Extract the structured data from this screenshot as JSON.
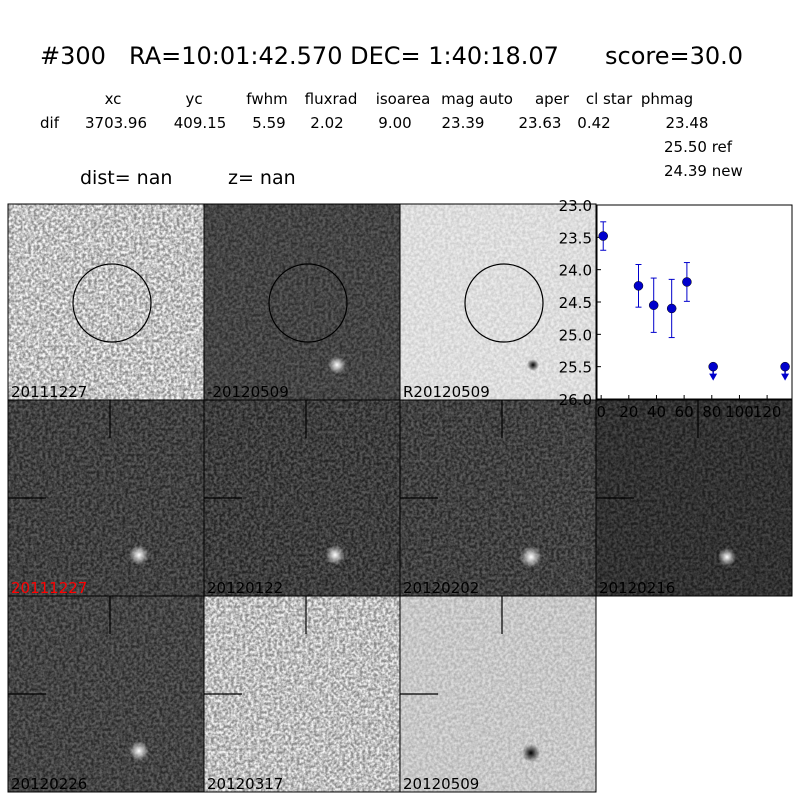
{
  "header": {
    "id": "#300",
    "coords": "RA=10:01:42.570 DEC= 1:40:18.07",
    "score": "score=30.0"
  },
  "table": {
    "columns": [
      "xc",
      "yc",
      "fwhm",
      "fluxrad",
      "isoarea",
      "mag auto",
      "aper",
      "cl star",
      "phmag"
    ],
    "row": [
      "dif",
      "3703.96",
      "409.15",
      "5.59",
      "2.02",
      "9.00",
      "23.39",
      "23.63",
      "0.42",
      "23.48"
    ],
    "extra": [
      "25.50 ref",
      "24.39 new"
    ]
  },
  "dist": "dist=   nan",
  "z": "z=   nan",
  "stamps": [
    {
      "label": "20111227",
      "label_color": "#000000"
    },
    {
      "label": "-20120509",
      "label_color": "#000000"
    },
    {
      "label": "R20120509",
      "label_color": "#000000"
    },
    {
      "label": "20111227",
      "label_color": "#ff0000"
    },
    {
      "label": "20120122",
      "label_color": "#000000"
    },
    {
      "label": "20120202",
      "label_color": "#000000"
    },
    {
      "label": "20120216",
      "label_color": "#000000"
    },
    {
      "label": "20120226",
      "label_color": "#000000"
    },
    {
      "label": "20120317",
      "label_color": "#000000"
    },
    {
      "label": "20120509",
      "label_color": "#000000"
    }
  ],
  "chart_data": {
    "type": "scatter",
    "series": [
      {
        "color": "#0000cc",
        "x": [
          1.5,
          27,
          38,
          51,
          62
        ],
        "values": [
          23.48,
          24.25,
          24.55,
          24.6,
          24.19
        ],
        "errors": [
          0.22,
          0.33,
          0.42,
          0.45,
          0.3
        ]
      },
      {
        "color": "#0000cc",
        "marker": "upper-limit",
        "x": [
          81,
          133
        ],
        "values": [
          25.5,
          25.5
        ]
      }
    ],
    "xlim": [
      -3,
      138
    ],
    "xticks": [
      0,
      20,
      40,
      60,
      80,
      100,
      120
    ],
    "ylim": [
      26.0,
      23.0
    ],
    "yticks": [
      {
        "value": 23.0,
        "label": "23.0"
      },
      {
        "value": 23.5,
        "label": "23.5"
      },
      {
        "value": 24.0,
        "label": "24.0"
      },
      {
        "value": 24.5,
        "label": "24.5"
      },
      {
        "value": 25.0,
        "label": "25.0"
      },
      {
        "value": 25.5,
        "label": "25.5"
      },
      {
        "value": 26.0,
        "label": "26.0"
      }
    ]
  }
}
